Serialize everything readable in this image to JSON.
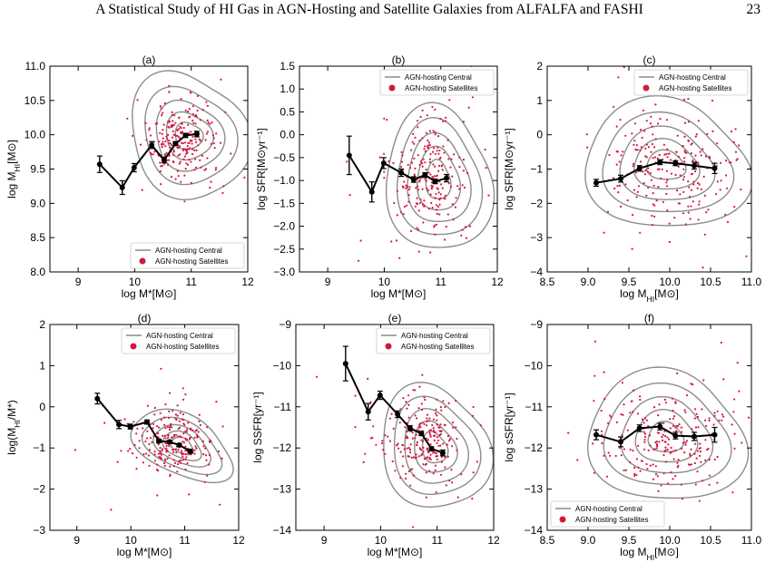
{
  "page": {
    "title": "A Statistical Study of HI Gas in AGN-Hosting and Satellite Galaxies from ALFALFA and FASHI",
    "page_number": "23"
  },
  "colors": {
    "central": "#8c8c8c",
    "satellite": "#d6173d",
    "median": "#000000"
  },
  "chart_data": [
    {
      "type": "scatter",
      "panel_label": "(a)",
      "xlabel": "log M*[M⊙]",
      "ylabel": "log M_HI[M⊙]",
      "xlim": [
        8.5,
        12
      ],
      "ylim": [
        8.0,
        11.0
      ],
      "xticks": [
        9,
        10,
        11,
        12
      ],
      "xtick_labels": [
        "9",
        "10",
        "11",
        "12"
      ],
      "yticks": [
        8.0,
        8.5,
        9.0,
        9.5,
        10.0,
        10.5,
        11.0
      ],
      "ytick_labels": [
        "8.0",
        "8.5",
        "9.0",
        "9.5",
        "10.0",
        "10.5",
        "11.0"
      ],
      "legend": {
        "position": "lower-right",
        "entries": [
          "AGN-hosting Central",
          "AGN-hosting Satellites"
        ]
      },
      "median": {
        "x": [
          9.38,
          9.78,
          9.99,
          10.3,
          10.52,
          10.72,
          10.9,
          11.1
        ],
        "y": [
          9.57,
          9.23,
          9.52,
          9.85,
          9.63,
          9.87,
          9.99,
          10.01
        ],
        "err": [
          0.12,
          0.1,
          0.06,
          0.05,
          0.04,
          0.03,
          0.03,
          0.04
        ]
      },
      "satellite_cloud": {
        "cx": 10.8,
        "cy": 9.97,
        "sx": 0.33,
        "sy": 0.3,
        "n": 230,
        "seed": 11
      },
      "central_contours": {
        "cx": 10.95,
        "cy": 9.98,
        "rx": [
          1.0,
          0.78,
          0.58,
          0.4,
          0.24
        ],
        "ry": [
          0.95,
          0.72,
          0.52,
          0.35,
          0.2
        ],
        "angle": 25
      }
    },
    {
      "type": "scatter",
      "panel_label": "(b)",
      "xlabel": "log M*[M⊙]",
      "ylabel": "log SFR[M⊙yr⁻¹]",
      "xlim": [
        8.5,
        12
      ],
      "ylim": [
        -3.0,
        1.5
      ],
      "xticks": [
        9,
        10,
        11,
        12
      ],
      "xtick_labels": [
        "9",
        "10",
        "11",
        "12"
      ],
      "yticks": [
        -3.0,
        -2.5,
        -2.0,
        -1.5,
        -1.0,
        -0.5,
        0.0,
        0.5,
        1.0,
        1.5
      ],
      "ytick_labels": [
        "−3.0",
        "−2.5",
        "−2.0",
        "−1.5",
        "−1.0",
        "−0.5",
        "0.0",
        "0.5",
        "1.0",
        "1.5"
      ],
      "legend": {
        "position": "top-right",
        "entries": [
          "AGN-hosting Central",
          "AGN-hosting Satellites"
        ]
      },
      "median": {
        "x": [
          9.38,
          9.78,
          9.99,
          10.3,
          10.52,
          10.72,
          10.9,
          11.1
        ],
        "y": [
          -0.45,
          -1.25,
          -0.62,
          -0.83,
          -0.98,
          -0.88,
          -1.02,
          -0.95
        ],
        "err": [
          0.42,
          0.22,
          0.12,
          0.08,
          0.06,
          0.05,
          0.05,
          0.08
        ]
      },
      "satellite_cloud": {
        "cx": 10.8,
        "cy": -0.95,
        "sx": 0.32,
        "sy": 0.6,
        "n": 230,
        "seed": 23
      },
      "central_contours": {
        "cx": 10.95,
        "cy": -1.0,
        "rx": [
          0.95,
          0.75,
          0.56,
          0.38,
          0.22
        ],
        "ry": [
          1.55,
          1.25,
          0.95,
          0.68,
          0.42
        ],
        "angle": 0
      }
    },
    {
      "type": "scatter",
      "panel_label": "(c)",
      "xlabel": "log M_HI[M⊙]",
      "ylabel": "log SFR[M⊙yr⁻¹]",
      "xlim": [
        8.5,
        11.0
      ],
      "ylim": [
        -4,
        2
      ],
      "xticks": [
        8.5,
        9.0,
        9.5,
        10.0,
        10.5,
        11.0
      ],
      "xtick_labels": [
        "8.5",
        "9.0",
        "9.5",
        "10.0",
        "10.5",
        "11.0"
      ],
      "yticks": [
        -4,
        -3,
        -2,
        -1,
        0,
        1,
        2
      ],
      "ytick_labels": [
        "−4",
        "−3",
        "−2",
        "−1",
        "0",
        "1",
        "2"
      ],
      "legend": {
        "position": "top-right",
        "entries": [
          "AGN-hosting Central",
          "AGN-hosting Satellites"
        ]
      },
      "median": {
        "x": [
          9.1,
          9.4,
          9.63,
          9.88,
          10.07,
          10.3,
          10.55
        ],
        "y": [
          -1.4,
          -1.28,
          -0.98,
          -0.8,
          -0.83,
          -0.9,
          -0.98
        ],
        "err": [
          0.1,
          0.1,
          0.08,
          0.07,
          0.07,
          0.1,
          0.15
        ]
      },
      "satellite_cloud": {
        "cx": 9.95,
        "cy": -0.95,
        "sx": 0.42,
        "sy": 0.8,
        "n": 240,
        "seed": 37
      },
      "central_contours": {
        "cx": 9.95,
        "cy": -0.9,
        "rx": [
          1.02,
          0.8,
          0.58,
          0.4,
          0.24
        ],
        "ry": [
          1.85,
          1.42,
          1.05,
          0.72,
          0.42
        ],
        "angle": 0
      }
    },
    {
      "type": "scatter",
      "panel_label": "(d)",
      "xlabel": "log M*[M⊙]",
      "ylabel": "log(M_HI/M*)",
      "xlim": [
        8.5,
        12
      ],
      "ylim": [
        -3,
        2
      ],
      "xticks": [
        9,
        10,
        11,
        12
      ],
      "xtick_labels": [
        "9",
        "10",
        "11",
        "12"
      ],
      "yticks": [
        -3,
        -2,
        -1,
        0,
        1,
        2
      ],
      "ytick_labels": [
        "−3",
        "−2",
        "−1",
        "0",
        "1",
        "2"
      ],
      "legend": {
        "position": "top-right",
        "entries": [
          "AGN-hosting Central",
          "AGN-hosting Satellites"
        ]
      },
      "median": {
        "x": [
          9.38,
          9.78,
          9.99,
          10.3,
          10.52,
          10.72,
          10.9,
          11.1
        ],
        "y": [
          0.2,
          -0.43,
          -0.48,
          -0.37,
          -0.83,
          -0.85,
          -0.93,
          -1.08
        ],
        "err": [
          0.13,
          0.1,
          0.06,
          0.05,
          0.04,
          0.04,
          0.04,
          0.05
        ]
      },
      "satellite_cloud": {
        "cx": 10.75,
        "cy": -0.85,
        "sx": 0.35,
        "sy": 0.42,
        "n": 230,
        "seed": 53
      },
      "central_contours": {
        "cx": 10.95,
        "cy": -0.95,
        "rx": [
          1.0,
          0.78,
          0.56,
          0.38,
          0.22
        ],
        "ry": [
          0.72,
          0.56,
          0.42,
          0.3,
          0.18
        ],
        "angle": -20
      }
    },
    {
      "type": "scatter",
      "panel_label": "(e)",
      "xlabel": "log M*[M⊙]",
      "ylabel": "log SSFR[yr⁻¹]",
      "xlim": [
        8.5,
        12
      ],
      "ylim": [
        -14,
        -9
      ],
      "xticks": [
        9,
        10,
        11,
        12
      ],
      "xtick_labels": [
        "9",
        "10",
        "11",
        "12"
      ],
      "yticks": [
        -14,
        -13,
        -12,
        -11,
        -10,
        -9
      ],
      "ytick_labels": [
        "−14",
        "−13",
        "−12",
        "−11",
        "−10",
        "−9"
      ],
      "legend": {
        "position": "top-right",
        "entries": [
          "AGN-hosting Central",
          "AGN-hosting Satellites"
        ]
      },
      "median": {
        "x": [
          9.38,
          9.78,
          9.99,
          10.3,
          10.52,
          10.72,
          10.9,
          11.1
        ],
        "y": [
          -9.95,
          -11.12,
          -10.72,
          -11.18,
          -11.52,
          -11.65,
          -12.02,
          -12.12
        ],
        "err": [
          0.42,
          0.2,
          0.1,
          0.08,
          0.06,
          0.05,
          0.05,
          0.07
        ]
      },
      "satellite_cloud": {
        "cx": 10.75,
        "cy": -11.75,
        "sx": 0.33,
        "sy": 0.55,
        "n": 230,
        "seed": 71
      },
      "central_contours": {
        "cx": 10.95,
        "cy": -12.0,
        "rx": [
          0.95,
          0.75,
          0.55,
          0.37,
          0.22
        ],
        "ry": [
          1.5,
          1.18,
          0.9,
          0.62,
          0.38
        ],
        "angle": 15
      }
    },
    {
      "type": "scatter",
      "panel_label": "(f)",
      "xlabel": "log M_HI[M⊙]",
      "ylabel": "log sSFR[yr⁻¹]",
      "xlim": [
        8.5,
        11.0
      ],
      "ylim": [
        -14,
        -9
      ],
      "xticks": [
        8.5,
        9.0,
        9.5,
        10.0,
        10.5,
        11.0
      ],
      "xtick_labels": [
        "8.5",
        "9.0",
        "9.5",
        "10.0",
        "10.5",
        "11.0"
      ],
      "yticks": [
        -14,
        -13,
        -12,
        -11,
        -10,
        -9
      ],
      "ytick_labels": [
        "−14",
        "−13",
        "−12",
        "−11",
        "−10",
        "−9"
      ],
      "legend": {
        "position": "bottom-left",
        "entries": [
          "AGN-hosting Central",
          "AGN-hosting Satellites"
        ]
      },
      "median": {
        "x": [
          9.1,
          9.4,
          9.63,
          9.88,
          10.07,
          10.3,
          10.55
        ],
        "y": [
          -11.68,
          -11.85,
          -11.52,
          -11.48,
          -11.7,
          -11.72,
          -11.68
        ],
        "err": [
          0.12,
          0.12,
          0.08,
          0.08,
          0.08,
          0.1,
          0.18
        ]
      },
      "satellite_cloud": {
        "cx": 9.95,
        "cy": -11.8,
        "sx": 0.42,
        "sy": 0.62,
        "n": 240,
        "seed": 97
      },
      "central_contours": {
        "cx": 9.95,
        "cy": -11.75,
        "rx": [
          0.98,
          0.78,
          0.56,
          0.38,
          0.22
        ],
        "ry": [
          1.55,
          1.2,
          0.9,
          0.62,
          0.36
        ],
        "angle": 0
      }
    }
  ]
}
